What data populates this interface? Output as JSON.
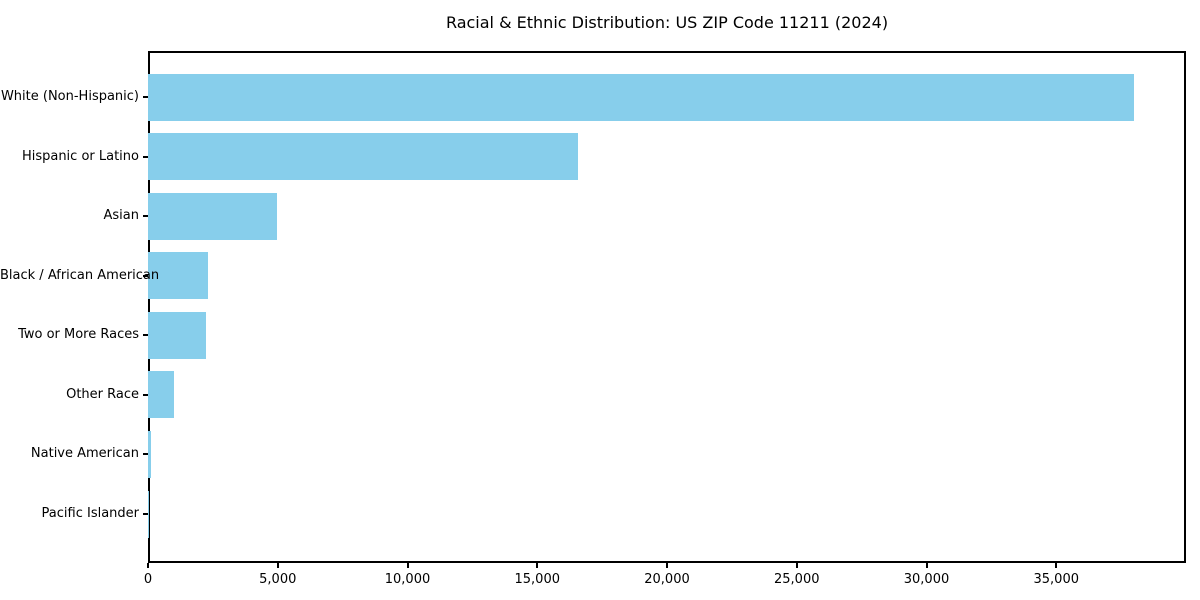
{
  "chart_data": {
    "type": "bar",
    "orientation": "horizontal",
    "title": "Racial & Ethnic Distribution: US ZIP Code 11211 (2024)",
    "categories": [
      "White (Non-Hispanic)",
      "Hispanic or Latino",
      "Asian",
      "Black / African American",
      "Two or More Races",
      "Other Race",
      "Native American",
      "Pacific Islander"
    ],
    "values": [
      38000,
      16560,
      4970,
      2300,
      2250,
      1010,
      130,
      20
    ],
    "bar_color": "#87CEEB",
    "xlabel": "",
    "ylabel": "",
    "xlim": [
      0,
      40000
    ],
    "xticks": [
      0,
      5000,
      10000,
      15000,
      20000,
      25000,
      30000,
      35000
    ],
    "xtick_labels": [
      "0",
      "5,000",
      "10,000",
      "15,000",
      "20,000",
      "25,000",
      "30,000",
      "35,000"
    ],
    "grid": false,
    "legend_position": "none",
    "axis_color": "#000000",
    "background_color": "#ffffff"
  }
}
